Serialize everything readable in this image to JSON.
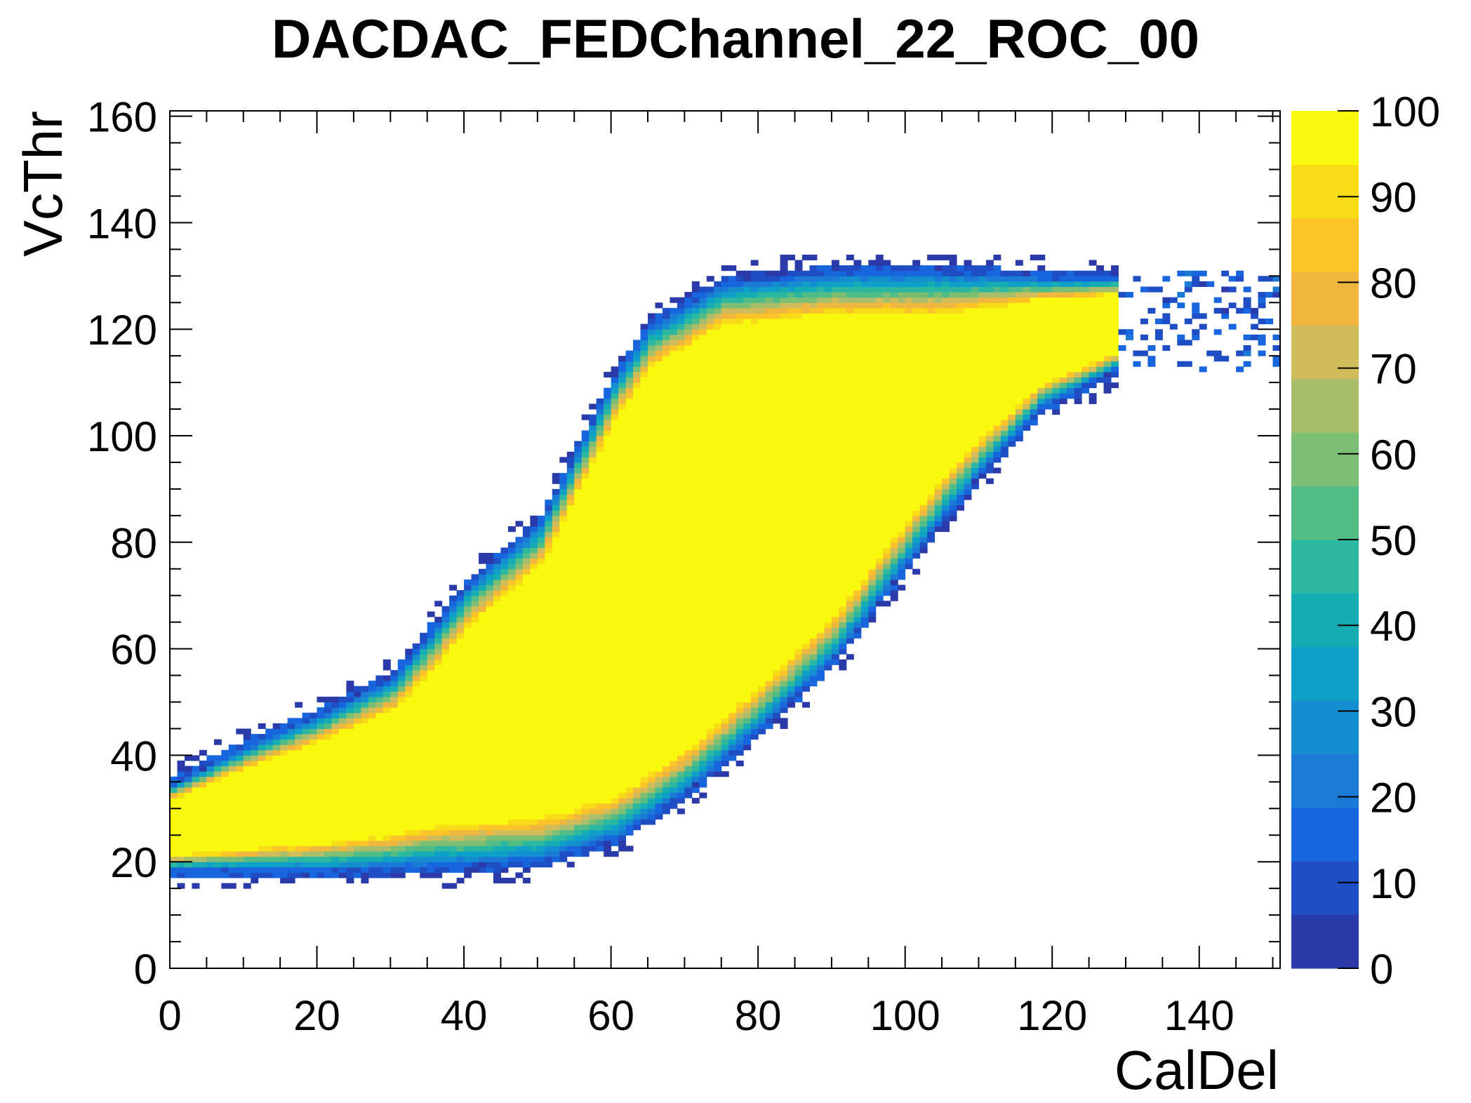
{
  "chart_data": {
    "type": "heatmap",
    "title": "DACDAC_FEDChannel_22_ROC_00",
    "xlabel": "CalDel",
    "ylabel": "VcThr",
    "xlim": [
      0,
      151
    ],
    "ylim": [
      0,
      161
    ],
    "x_ticks": [
      "0",
      "20",
      "40",
      "60",
      "80",
      "100",
      "120",
      "140"
    ],
    "y_ticks": [
      "0",
      "20",
      "40",
      "60",
      "80",
      "100",
      "120",
      "140",
      "160"
    ],
    "z_range": [
      0,
      100
    ],
    "colorbar_ticks": [
      "0",
      "10",
      "20",
      "30",
      "40",
      "50",
      "60",
      "70",
      "80",
      "90",
      "100"
    ],
    "colormap": [
      "#2a3aa8",
      "#1f4ec4",
      "#1866de",
      "#1a7ad6",
      "#158ed0",
      "#0fa0c8",
      "#16acb4",
      "#2cb8a0",
      "#52bc86",
      "#7cbe74",
      "#a8be6a",
      "#d0bc5a",
      "#f0b73e",
      "#fcc428",
      "#f8dc18",
      "#f9f90f"
    ],
    "band": {
      "description_points_lower": [
        [
          0,
          18
        ],
        [
          20,
          18
        ],
        [
          40,
          19
        ],
        [
          50,
          20
        ],
        [
          60,
          24
        ],
        [
          70,
          33
        ],
        [
          80,
          45
        ],
        [
          90,
          58
        ],
        [
          100,
          76
        ],
        [
          110,
          93
        ],
        [
          118,
          105
        ],
        [
          128,
          112
        ]
      ],
      "description_points_upper": [
        [
          0,
          34
        ],
        [
          10,
          41
        ],
        [
          20,
          47
        ],
        [
          30,
          54
        ],
        [
          40,
          71
        ],
        [
          50,
          83
        ],
        [
          60,
          110
        ],
        [
          65,
          120
        ],
        [
          75,
          128
        ],
        [
          90,
          130
        ],
        [
          105,
          130
        ],
        [
          120,
          129
        ],
        [
          150,
          129
        ]
      ],
      "peak_value": 100
    }
  }
}
